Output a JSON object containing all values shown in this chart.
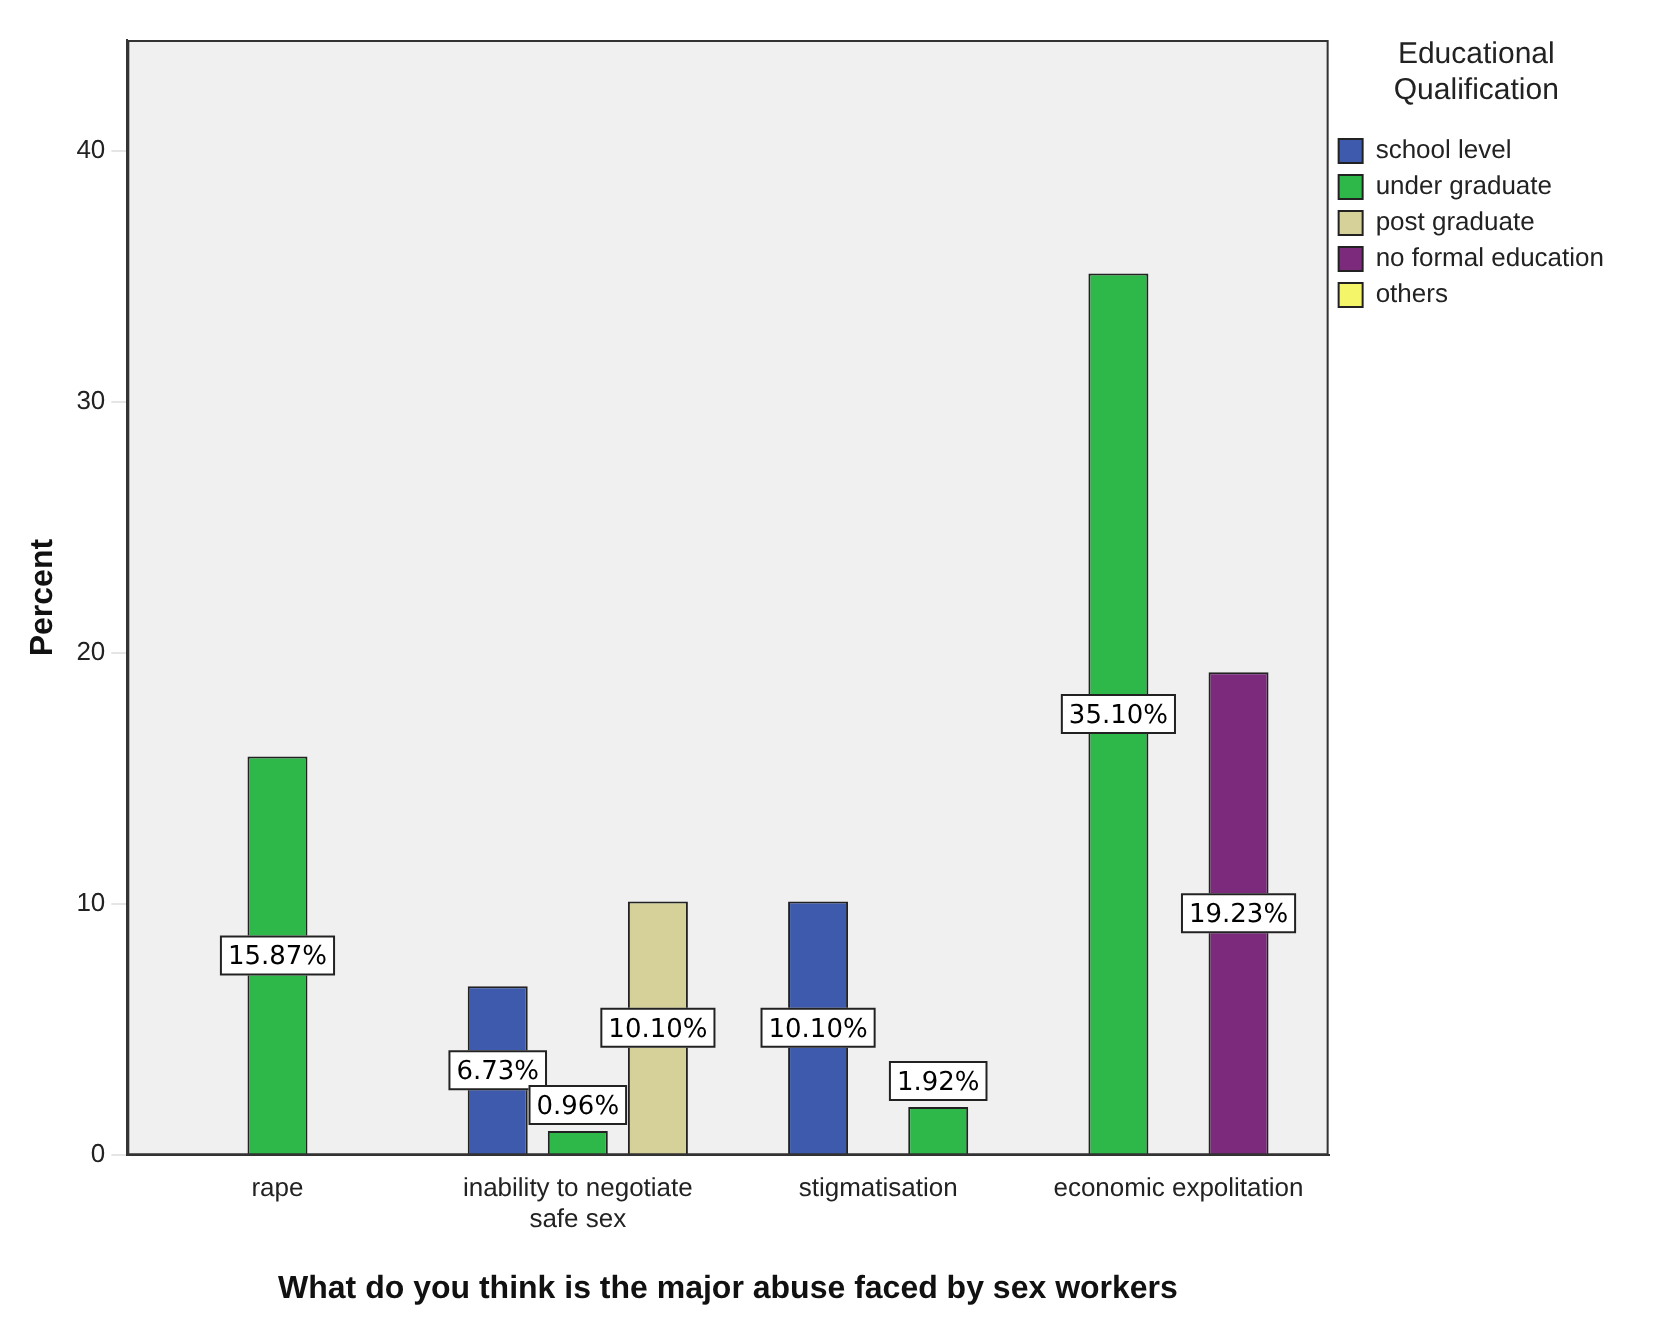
{
  "chart_data": {
    "type": "bar",
    "xlabel": "What do you think is the major abuse faced by sex workers",
    "ylabel": "Percent",
    "legend_title": "Educational Qualification",
    "legend": "top right",
    "categories": [
      "rape",
      "inability to negotiate safe sex",
      "stigmatisation",
      "economic expolitation"
    ],
    "series": [
      {
        "name": "school level",
        "color": "#3d5aad",
        "values": [
          null,
          6.73,
          10.1,
          null
        ],
        "value_labels": [
          null,
          "6.73%",
          "10.10%",
          null
        ]
      },
      {
        "name": "under graduate",
        "color": "#2fb84a",
        "values": [
          15.87,
          0.96,
          1.92,
          35.1
        ],
        "value_labels": [
          "15.87%",
          "0.96%",
          "1.92%",
          "35.10%"
        ]
      },
      {
        "name": "post graduate",
        "color": "#d6d198",
        "values": [
          null,
          10.1,
          null,
          null
        ],
        "value_labels": [
          null,
          "10.10%",
          null,
          null
        ]
      },
      {
        "name": "no formal education",
        "color": "#7b2a7c",
        "values": [
          null,
          null,
          null,
          19.23
        ],
        "value_labels": [
          null,
          null,
          null,
          "19.23%"
        ]
      },
      {
        "name": "others",
        "color": "#f5f56a",
        "values": [
          null,
          null,
          null,
          null
        ]
      }
    ],
    "ylim": [
      0,
      44.4
    ],
    "yticks": [
      0,
      10,
      20,
      30,
      40
    ],
    "grid": false
  }
}
